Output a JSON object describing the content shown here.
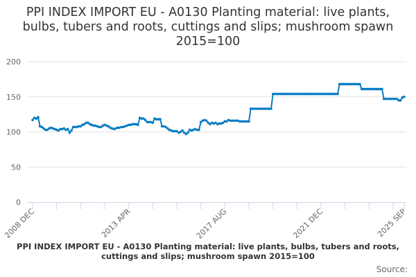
{
  "title": "PPI INDEX IMPORT EU - A0130 Planting material: live plants, bulbs, tubers and roots, cuttings and slips; mushroom spawn 2015=100",
  "caption": "PPI INDEX IMPORT EU - A0130 Planting material: live plants, bulbs, tubers and roots, cuttings and slips; mushroom spawn 2015=100",
  "source_label": "Source:",
  "colors": {
    "line": "#0a7cc4",
    "grid": "#e3e3e3",
    "axis": "#ccd6eb"
  },
  "chart_data": {
    "type": "line",
    "title": "PPI INDEX IMPORT EU - A0130 Planting material: live plants, bulbs, tubers and roots, cuttings and slips; mushroom spawn 2015=100",
    "xlabel": "",
    "ylabel": "",
    "x_start": "2008-12",
    "x_end": "2025-09",
    "x_frequency": "monthly",
    "x_tick_labels": [
      "2008 DEC",
      "2013 APR",
      "2017 AUG",
      "2021 DEC",
      "2025 SEP"
    ],
    "x_tick_label_months": [
      0,
      52,
      104,
      156,
      201
    ],
    "ylim": [
      0,
      200
    ],
    "y_ticks": [
      0,
      50,
      100,
      150,
      200
    ],
    "grid": true,
    "legend": "none",
    "series": [
      {
        "name": "A0130 Planting material",
        "values": [
          117,
          120,
          119,
          121,
          108,
          107,
          105,
          103,
          103,
          105,
          106,
          105,
          104,
          103,
          102,
          104,
          104,
          105,
          103,
          104,
          99,
          102,
          107,
          107,
          107,
          108,
          108,
          110,
          111,
          113,
          113,
          111,
          110,
          109,
          109,
          108,
          107,
          107,
          109,
          110,
          109,
          108,
          106,
          105,
          104,
          105,
          106,
          106,
          107,
          107,
          108,
          109,
          110,
          110,
          111,
          111,
          111,
          110,
          120,
          119,
          119,
          117,
          114,
          114,
          114,
          113,
          119,
          118,
          118,
          118,
          108,
          108,
          107,
          105,
          103,
          102,
          101,
          101,
          101,
          99,
          100,
          102,
          99,
          97,
          99,
          103,
          102,
          103,
          104,
          103,
          103,
          114,
          116,
          117,
          116,
          113,
          111,
          113,
          112,
          113,
          111,
          112,
          112,
          113,
          115,
          115,
          117,
          116,
          116,
          116,
          116,
          116,
          115,
          115,
          115,
          115,
          115,
          115,
          133,
          133,
          133,
          133,
          133,
          133,
          133,
          133,
          133,
          133,
          133,
          133,
          154,
          154,
          154,
          154,
          154,
          154,
          154,
          154,
          154,
          154,
          154,
          154,
          154,
          154,
          154,
          154,
          154,
          154,
          154,
          154,
          154,
          154,
          154,
          154,
          154,
          154,
          154,
          154,
          154,
          154,
          154,
          154,
          154,
          154,
          154,
          154,
          168,
          168,
          168,
          168,
          168,
          168,
          168,
          168,
          168,
          168,
          168,
          168,
          161,
          161,
          161,
          161,
          161,
          161,
          161,
          161,
          161,
          161,
          161,
          161,
          147,
          147,
          147,
          147,
          147,
          147,
          147,
          147,
          145,
          145,
          149,
          150
        ]
      }
    ]
  }
}
